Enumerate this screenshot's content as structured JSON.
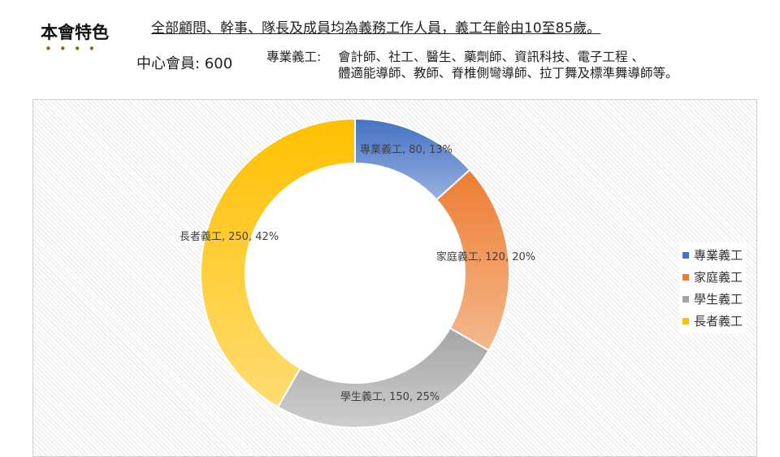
{
  "header": {
    "heading": "本會特色",
    "dots": "••••",
    "headline": "全部顧問、幹事、隊長及成員均為義務工作人員，義工年齡由10至85歲。",
    "members": "中心會員: 600",
    "professional_label": "專業義工:",
    "professional_line1": "會計師、社工、醫生、藥劑師、資訊科技、電子工程 、",
    "professional_line2": "體適能導師、教師、脊椎側彎導師、拉丁舞及標準舞導師等。"
  },
  "chart_data": {
    "type": "pie",
    "style": "donut",
    "categories": [
      "專業義工",
      "家庭義工",
      "學生義工",
      "長者義工"
    ],
    "values": [
      80,
      120,
      150,
      250
    ],
    "percentages": [
      "13%",
      "20%",
      "25%",
      "42%"
    ],
    "data_labels": [
      "專業義工, 80, 13%",
      "家庭義工, 120, 20%",
      "學生義工, 150, 25%",
      "長者義工, 250, 42%"
    ],
    "colors": [
      "#4472C4",
      "#ED7D31",
      "#A5A5A5",
      "#FFC000"
    ],
    "legend_position": "right",
    "title": ""
  }
}
